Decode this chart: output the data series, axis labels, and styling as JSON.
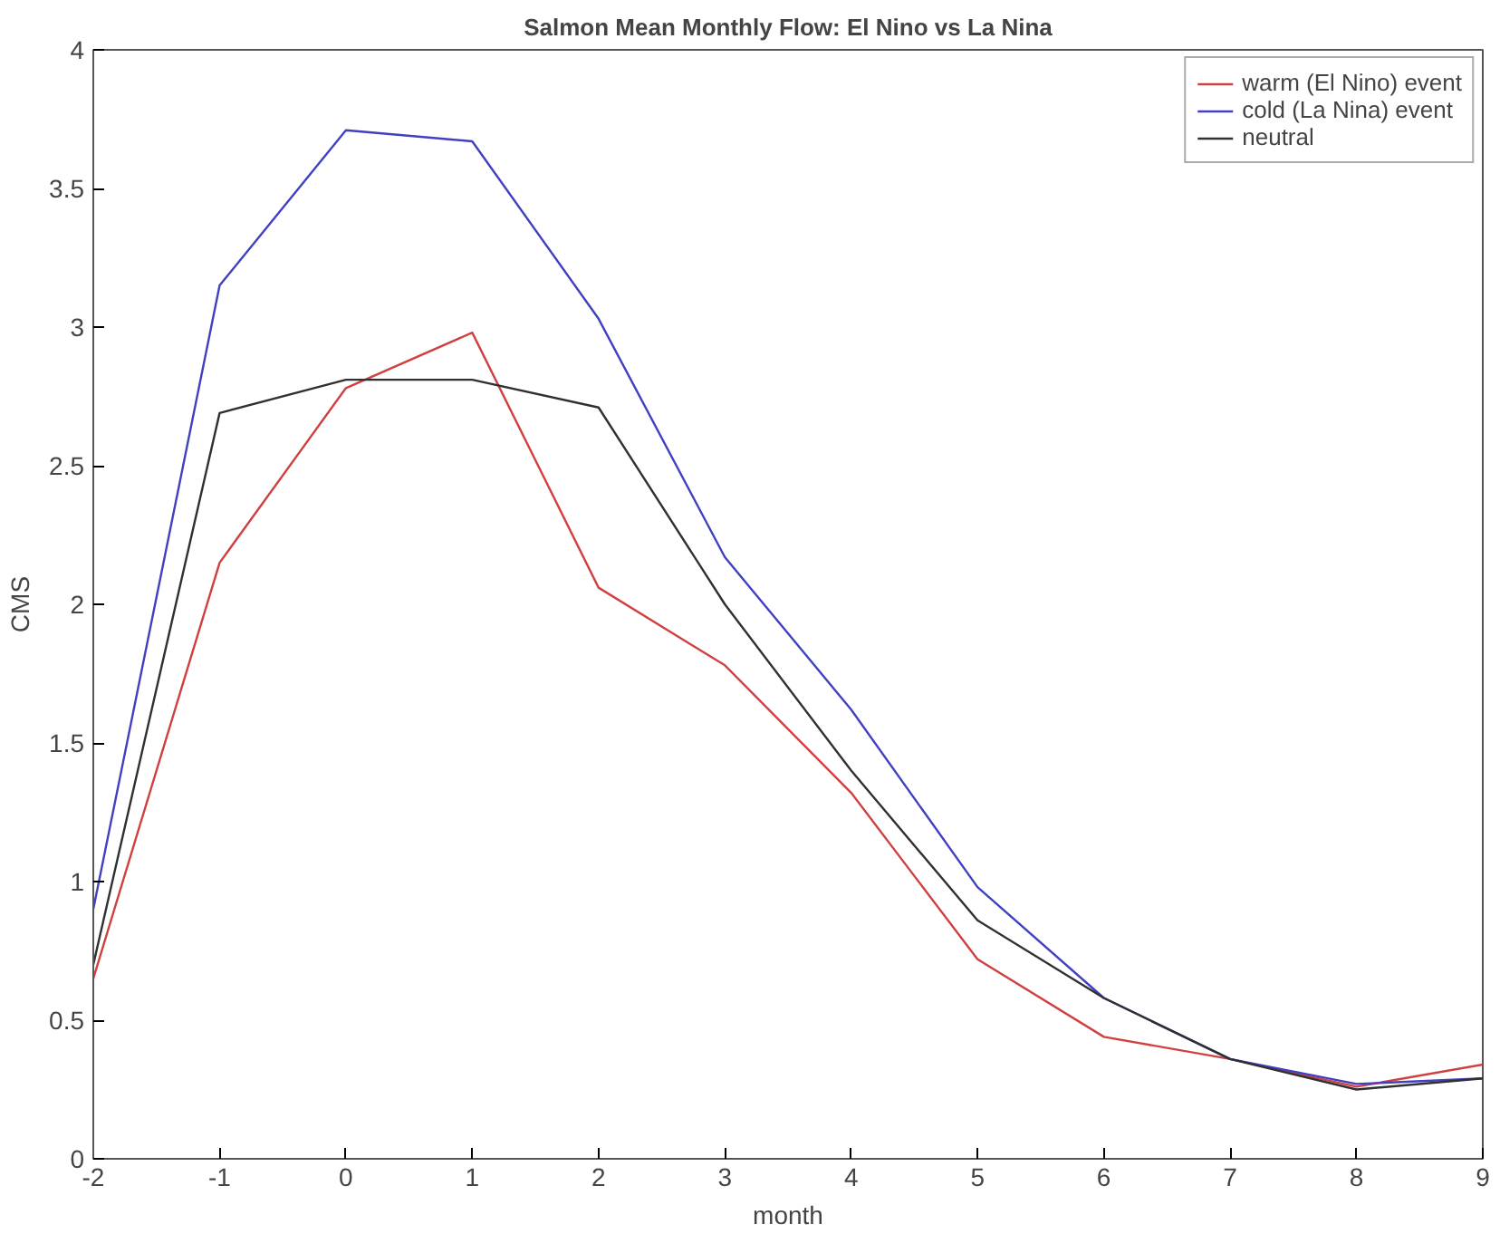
{
  "chart_data": {
    "type": "line",
    "title": "Salmon Mean Monthly Flow: El Nino vs La Nina",
    "xlabel": "month",
    "ylabel": "CMS",
    "x": [
      -2,
      -1,
      0,
      1,
      2,
      3,
      4,
      5,
      6,
      7,
      8,
      9
    ],
    "series": [
      {
        "name": "warm (El Nino) event",
        "color": "#d04040",
        "values": [
          0.65,
          2.15,
          2.78,
          2.98,
          2.06,
          1.78,
          1.32,
          0.72,
          0.44,
          0.36,
          0.26,
          0.34
        ]
      },
      {
        "name": "cold (La Nina) event",
        "color": "#4040c0",
        "values": [
          0.9,
          3.15,
          3.71,
          3.67,
          3.03,
          2.17,
          1.62,
          0.98,
          0.58,
          0.36,
          0.27,
          0.29
        ]
      },
      {
        "name": "neutral",
        "color": "#303030",
        "values": [
          0.7,
          2.69,
          2.81,
          2.81,
          2.71,
          2.0,
          1.4,
          0.86,
          0.58,
          0.36,
          0.25,
          0.29
        ]
      }
    ],
    "xlim": [
      -2,
      9
    ],
    "xticks": [
      -2,
      -1,
      0,
      1,
      2,
      3,
      4,
      5,
      6,
      7,
      8,
      9
    ],
    "ylim": [
      0,
      4
    ],
    "yticks": [
      0,
      0.5,
      1,
      1.5,
      2,
      2.5,
      3,
      3.5,
      4
    ],
    "grid": false,
    "legend": "top right",
    "line_style": "solid",
    "marker": "none"
  }
}
